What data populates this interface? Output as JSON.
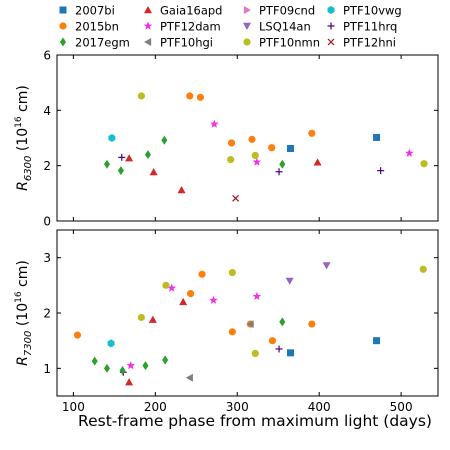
{
  "chart_data": {
    "type": "scatter",
    "xlabel": "Rest-frame phase from maximum light (days)",
    "xlim": [
      80,
      545
    ],
    "xticks": [
      100,
      200,
      300,
      400,
      500
    ],
    "legend_position": "top",
    "legend": [
      {
        "name": "2007bi",
        "marker": "square",
        "color": "#1f77b4"
      },
      {
        "name": "Gaia16apd",
        "marker": "triangle-up",
        "color": "#d62728"
      },
      {
        "name": "PTF09cnd",
        "marker": "triangle-right",
        "color": "#e377c2"
      },
      {
        "name": "PTF10vwg",
        "marker": "hexagon",
        "color": "#17becf"
      },
      {
        "name": "2015bn",
        "marker": "circle",
        "color": "#ff7f0e"
      },
      {
        "name": "PTF12dam",
        "marker": "star",
        "color": "#f032e6"
      },
      {
        "name": "LSQ14an",
        "marker": "triangle-down",
        "color": "#9467bd"
      },
      {
        "name": "PTF11hrq",
        "marker": "plus",
        "color": "#4b0082"
      },
      {
        "name": "2017egm",
        "marker": "diamond",
        "color": "#2ca02c"
      },
      {
        "name": "PTF10hgi",
        "marker": "triangle-left",
        "color": "#7f7f7f"
      },
      {
        "name": "PTF10nmn",
        "marker": "circle",
        "color": "#bcbd22"
      },
      {
        "name": "PTF12hni",
        "marker": "x",
        "color": "#a01020"
      }
    ],
    "panels": [
      {
        "ylabel_main": "R",
        "ylabel_sub": "6300",
        "ylabel_unit": " (10",
        "ylabel_exp": "16",
        "ylabel_tail": " cm)",
        "ylim": [
          0,
          6
        ],
        "yticks": [
          0,
          2,
          4,
          6
        ],
        "series": [
          {
            "name": "2007bi",
            "points": [
              [
                365,
                2.62
              ],
              [
                470,
                3.02
              ]
            ]
          },
          {
            "name": "Gaia16apd",
            "points": [
              [
                168,
                2.27
              ],
              [
                198,
                1.77
              ],
              [
                232,
                1.12
              ],
              [
                398,
                2.12
              ]
            ]
          },
          {
            "name": "PTF09cnd",
            "points": []
          },
          {
            "name": "PTF10vwg",
            "points": [
              [
                147,
                3.0
              ]
            ]
          },
          {
            "name": "2015bn",
            "points": [
              [
                242,
                4.52
              ],
              [
                255,
                4.47
              ],
              [
                293,
                2.82
              ],
              [
                318,
                2.95
              ],
              [
                342,
                2.65
              ],
              [
                391,
                3.17
              ]
            ]
          },
          {
            "name": "PTF12dam",
            "points": [
              [
                272,
                3.5
              ],
              [
                324,
                2.13
              ],
              [
                510,
                2.45
              ]
            ]
          },
          {
            "name": "LSQ14an",
            "points": []
          },
          {
            "name": "PTF11hrq",
            "points": [
              [
                159,
                2.3
              ],
              [
                351,
                1.78
              ],
              [
                475,
                1.82
              ]
            ]
          },
          {
            "name": "2017egm",
            "points": [
              [
                141,
                2.05
              ],
              [
                158,
                1.82
              ],
              [
                191,
                2.4
              ],
              [
                211,
                2.92
              ],
              [
                355,
                2.05
              ]
            ]
          },
          {
            "name": "PTF10hgi",
            "points": []
          },
          {
            "name": "PTF10nmn",
            "points": [
              [
                183,
                4.52
              ],
              [
                292,
                2.22
              ],
              [
                322,
                2.37
              ],
              [
                528,
                2.07
              ]
            ]
          },
          {
            "name": "PTF12hni",
            "points": [
              [
                298,
                0.82
              ]
            ]
          }
        ]
      },
      {
        "ylabel_main": "R",
        "ylabel_sub": "7300",
        "ylabel_unit": " (10",
        "ylabel_exp": "16",
        "ylabel_tail": " cm)",
        "ylim": [
          0.5,
          3.5
        ],
        "yticks": [
          1,
          2,
          3
        ],
        "series": [
          {
            "name": "2007bi",
            "points": [
              [
                365,
                1.28
              ],
              [
                470,
                1.5
              ]
            ]
          },
          {
            "name": "Gaia16apd",
            "points": [
              [
                168,
                0.75
              ],
              [
                197,
                1.88
              ],
              [
                234,
                2.2
              ]
            ]
          },
          {
            "name": "PTF09cnd",
            "points": []
          },
          {
            "name": "PTF10vwg",
            "points": [
              [
                146,
                1.45
              ]
            ]
          },
          {
            "name": "2015bn",
            "points": [
              [
                105,
                1.6
              ],
              [
                243,
                2.35
              ],
              [
                257,
                2.7
              ],
              [
                294,
                1.66
              ],
              [
                316,
                1.8
              ],
              [
                343,
                1.5
              ],
              [
                391,
                1.8
              ]
            ]
          },
          {
            "name": "PTF12dam",
            "points": [
              [
                170,
                1.05
              ],
              [
                220,
                2.45
              ],
              [
                271,
                2.23
              ],
              [
                324,
                2.3
              ]
            ]
          },
          {
            "name": "LSQ14an",
            "points": [
              [
                364,
                2.58
              ],
              [
                409,
                2.86
              ]
            ]
          },
          {
            "name": "PTF11hrq",
            "points": [
              [
                161,
                0.93
              ],
              [
                351,
                1.35
              ]
            ]
          },
          {
            "name": "2017egm",
            "points": [
              [
                126,
                1.13
              ],
              [
                141,
                1.0
              ],
              [
                160,
                0.96
              ],
              [
                188,
                1.05
              ],
              [
                212,
                1.15
              ],
              [
                355,
                1.84
              ]
            ]
          },
          {
            "name": "PTF10hgi",
            "points": [
              [
                242,
                0.83
              ],
              [
                316,
                1.8
              ]
            ]
          },
          {
            "name": "PTF10nmn",
            "points": [
              [
                183,
                1.92
              ],
              [
                213,
                2.5
              ],
              [
                294,
                2.73
              ],
              [
                322,
                1.27
              ],
              [
                527,
                2.79
              ]
            ]
          },
          {
            "name": "PTF12hni",
            "points": []
          }
        ]
      }
    ]
  }
}
